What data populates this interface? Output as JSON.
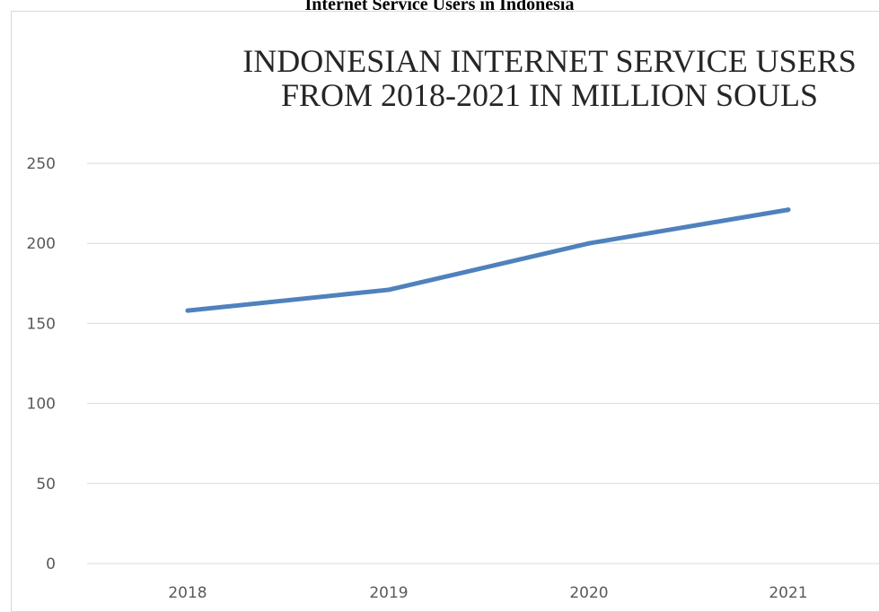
{
  "caption": "Internet Service Users in Indonesia",
  "chart_data": {
    "type": "line",
    "title_lines": [
      "INDONESIAN INTERNET SERVICE USERS",
      "FROM 2018-2021 IN MILLION SOULS"
    ],
    "categories": [
      "2018",
      "2019",
      "2020",
      "2021"
    ],
    "series": [
      {
        "values": [
          158,
          171,
          200,
          221
        ]
      }
    ],
    "ylim": [
      0,
      250
    ],
    "yticks": [
      0,
      50,
      100,
      150,
      200,
      250
    ],
    "grid": true,
    "legend": "none",
    "line_color": "#4f81bd",
    "grid_color": "#d9d9d9"
  }
}
